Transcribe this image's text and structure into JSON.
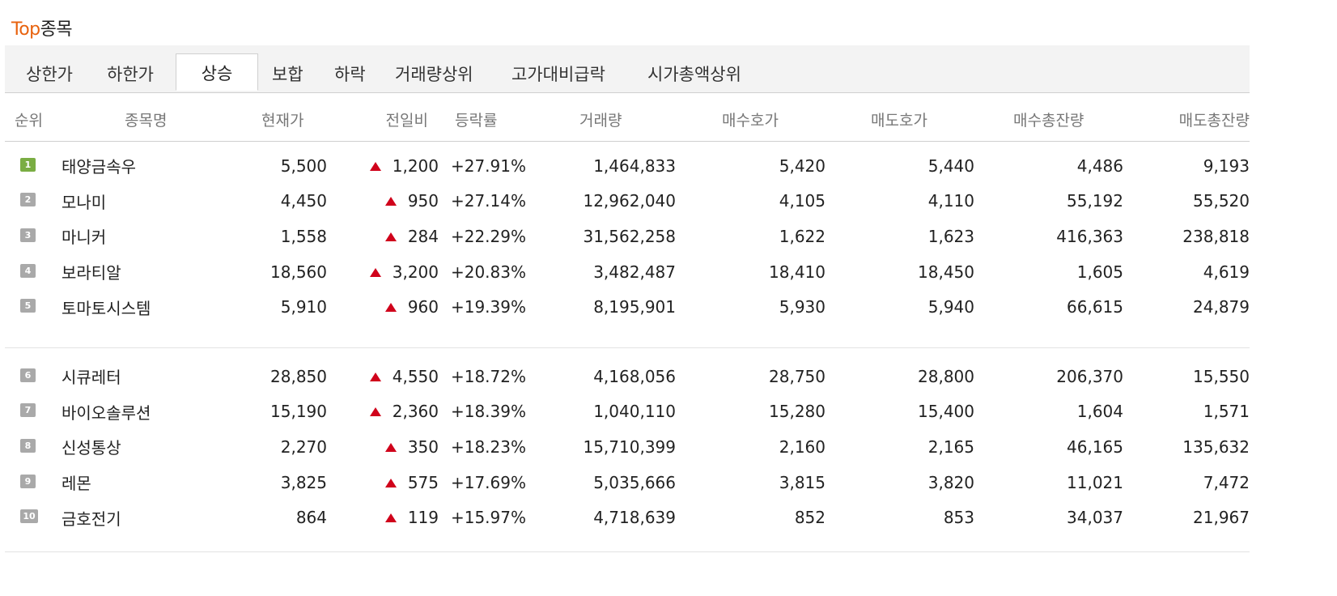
{
  "title": {
    "accent": "Top",
    "rest": "종목"
  },
  "tabs": [
    {
      "label": "상한가"
    },
    {
      "label": "하한가"
    },
    {
      "label": "상승"
    },
    {
      "label": "보합"
    },
    {
      "label": "하락"
    },
    {
      "label": "거래량상위"
    },
    {
      "label": "고가대비급락"
    },
    {
      "label": "시가총액상위"
    }
  ],
  "active_tab": "상승",
  "columns": [
    "순위",
    "종목명",
    "현재가",
    "전일비",
    "등락률",
    "거래량",
    "매수호가",
    "매도호가",
    "매수총잔량",
    "매도총잔량"
  ],
  "colors": {
    "accent": "#e8620e",
    "up": "#d0021b",
    "rank_top": "#7aad43",
    "rank_other": "#a9a9a9"
  },
  "rows": [
    {
      "rank": "1",
      "name": "태양금속우",
      "price": "5,500",
      "change": "1,200",
      "rate": "+27.91%",
      "volume": "1,464,833",
      "bid": "5,420",
      "ask": "5,440",
      "bid_total": "4,486",
      "ask_total": "9,193"
    },
    {
      "rank": "2",
      "name": "모나미",
      "price": "4,450",
      "change": "950",
      "rate": "+27.14%",
      "volume": "12,962,040",
      "bid": "4,105",
      "ask": "4,110",
      "bid_total": "55,192",
      "ask_total": "55,520"
    },
    {
      "rank": "3",
      "name": "마니커",
      "price": "1,558",
      "change": "284",
      "rate": "+22.29%",
      "volume": "31,562,258",
      "bid": "1,622",
      "ask": "1,623",
      "bid_total": "416,363",
      "ask_total": "238,818"
    },
    {
      "rank": "4",
      "name": "보라티알",
      "price": "18,560",
      "change": "3,200",
      "rate": "+20.83%",
      "volume": "3,482,487",
      "bid": "18,410",
      "ask": "18,450",
      "bid_total": "1,605",
      "ask_total": "4,619"
    },
    {
      "rank": "5",
      "name": "토마토시스템",
      "price": "5,910",
      "change": "960",
      "rate": "+19.39%",
      "volume": "8,195,901",
      "bid": "5,930",
      "ask": "5,940",
      "bid_total": "66,615",
      "ask_total": "24,879"
    },
    {
      "rank": "6",
      "name": "시큐레터",
      "price": "28,850",
      "change": "4,550",
      "rate": "+18.72%",
      "volume": "4,168,056",
      "bid": "28,750",
      "ask": "28,800",
      "bid_total": "206,370",
      "ask_total": "15,550"
    },
    {
      "rank": "7",
      "name": "바이오솔루션",
      "price": "15,190",
      "change": "2,360",
      "rate": "+18.39%",
      "volume": "1,040,110",
      "bid": "15,280",
      "ask": "15,400",
      "bid_total": "1,604",
      "ask_total": "1,571"
    },
    {
      "rank": "8",
      "name": "신성통상",
      "price": "2,270",
      "change": "350",
      "rate": "+18.23%",
      "volume": "15,710,399",
      "bid": "2,160",
      "ask": "2,165",
      "bid_total": "46,165",
      "ask_total": "135,632"
    },
    {
      "rank": "9",
      "name": "레몬",
      "price": "3,825",
      "change": "575",
      "rate": "+17.69%",
      "volume": "5,035,666",
      "bid": "3,815",
      "ask": "3,820",
      "bid_total": "11,021",
      "ask_total": "7,472"
    },
    {
      "rank": "10",
      "name": "금호전기",
      "price": "864",
      "change": "119",
      "rate": "+15.97%",
      "volume": "4,718,639",
      "bid": "852",
      "ask": "853",
      "bid_total": "34,037",
      "ask_total": "21,967"
    }
  ]
}
